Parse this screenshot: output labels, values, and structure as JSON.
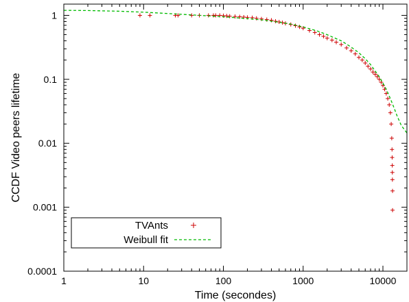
{
  "chart_data": {
    "type": "scatter",
    "xlabel": "Time (secondes)",
    "ylabel": "CCDF Video peers lifetime",
    "xscale": "log",
    "yscale": "log",
    "xlim": [
      1,
      20000
    ],
    "ylim": [
      0.0001,
      1.5
    ],
    "x_ticks": [
      {
        "value": 1,
        "label": "1"
      },
      {
        "value": 10,
        "label": "10"
      },
      {
        "value": 100,
        "label": "100"
      },
      {
        "value": 1000,
        "label": "1000"
      },
      {
        "value": 10000,
        "label": "10000"
      }
    ],
    "y_ticks": [
      {
        "value": 0.0001,
        "label": "0.0001"
      },
      {
        "value": 0.001,
        "label": "0.001"
      },
      {
        "value": 0.01,
        "label": "0.01"
      },
      {
        "value": 0.1,
        "label": "0.1"
      },
      {
        "value": 1,
        "label": "1"
      }
    ],
    "legend": "bottom-left",
    "grid": false,
    "series": [
      {
        "name": "TVAnts",
        "kind": "points",
        "marker": "+",
        "color": "#cc0000",
        "points": [
          [
            9,
            1.0
          ],
          [
            12,
            1.0
          ],
          [
            25,
            1.0
          ],
          [
            27,
            1.0
          ],
          [
            40,
            1.0
          ],
          [
            50,
            1.0
          ],
          [
            65,
            1.0
          ],
          [
            75,
            1.0
          ],
          [
            80,
            1.0
          ],
          [
            90,
            1.0
          ],
          [
            100,
            0.99
          ],
          [
            110,
            0.98
          ],
          [
            120,
            0.97
          ],
          [
            140,
            0.96
          ],
          [
            160,
            0.95
          ],
          [
            180,
            0.94
          ],
          [
            200,
            0.93
          ],
          [
            230,
            0.92
          ],
          [
            260,
            0.9
          ],
          [
            300,
            0.88
          ],
          [
            350,
            0.86
          ],
          [
            400,
            0.84
          ],
          [
            450,
            0.81
          ],
          [
            500,
            0.79
          ],
          [
            550,
            0.77
          ],
          [
            600,
            0.75
          ],
          [
            700,
            0.72
          ],
          [
            800,
            0.69
          ],
          [
            900,
            0.66
          ],
          [
            1000,
            0.63
          ],
          [
            1200,
            0.58
          ],
          [
            1400,
            0.54
          ],
          [
            1600,
            0.5
          ],
          [
            1800,
            0.47
          ],
          [
            2000,
            0.44
          ],
          [
            2300,
            0.41
          ],
          [
            2600,
            0.38
          ],
          [
            3000,
            0.35
          ],
          [
            3500,
            0.31
          ],
          [
            4000,
            0.28
          ],
          [
            4500,
            0.25
          ],
          [
            5000,
            0.22
          ],
          [
            5500,
            0.2
          ],
          [
            6000,
            0.18
          ],
          [
            6500,
            0.16
          ],
          [
            7000,
            0.145
          ],
          [
            7500,
            0.13
          ],
          [
            8000,
            0.12
          ],
          [
            8500,
            0.11
          ],
          [
            9000,
            0.1
          ],
          [
            9500,
            0.09
          ],
          [
            10000,
            0.08
          ],
          [
            10500,
            0.07
          ],
          [
            11000,
            0.06
          ],
          [
            11500,
            0.05
          ],
          [
            12000,
            0.04
          ],
          [
            12400,
            0.03
          ],
          [
            12700,
            0.02
          ],
          [
            12900,
            0.012
          ],
          [
            13000,
            0.008
          ],
          [
            13050,
            0.006
          ],
          [
            13100,
            0.0045
          ],
          [
            13120,
            0.0035
          ],
          [
            13150,
            0.0027
          ],
          [
            13200,
            0.0018
          ],
          [
            13200,
            0.0009
          ]
        ]
      },
      {
        "name": "Weibull fit",
        "kind": "line",
        "color": "#00bb00",
        "dash": "dashed",
        "points": [
          [
            1,
            1.2
          ],
          [
            2,
            1.19
          ],
          [
            5,
            1.16
          ],
          [
            10,
            1.12
          ],
          [
            20,
            1.07
          ],
          [
            50,
            1.0
          ],
          [
            100,
            0.95
          ],
          [
            200,
            0.89
          ],
          [
            300,
            0.85
          ],
          [
            500,
            0.78
          ],
          [
            700,
            0.73
          ],
          [
            1000,
            0.66
          ],
          [
            1500,
            0.57
          ],
          [
            2000,
            0.5
          ],
          [
            3000,
            0.4
          ],
          [
            4000,
            0.32
          ],
          [
            5000,
            0.26
          ],
          [
            6000,
            0.21
          ],
          [
            7000,
            0.17
          ],
          [
            8000,
            0.135
          ],
          [
            9000,
            0.11
          ],
          [
            10000,
            0.087
          ],
          [
            11000,
            0.07
          ],
          [
            12000,
            0.055
          ],
          [
            13000,
            0.043
          ],
          [
            14000,
            0.034
          ],
          [
            15000,
            0.027
          ],
          [
            17000,
            0.019
          ],
          [
            20000,
            0.0145
          ]
        ]
      }
    ]
  }
}
